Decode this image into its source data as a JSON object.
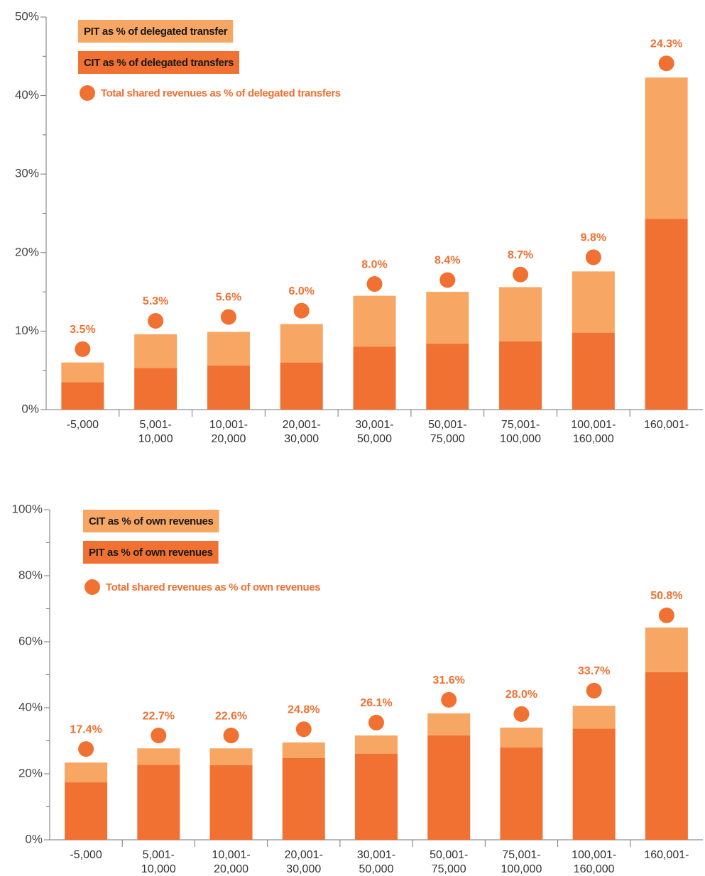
{
  "chart_data": [
    {
      "type": "bar",
      "categories": [
        "-5,000",
        "5,001-\n10,000",
        "10,001-\n20,000",
        "20,001-\n30,000",
        "30,001-\n50,000",
        "50,001-\n75,000",
        "75,001-\n100,000",
        "100,001-\n160,000",
        "160,001-"
      ],
      "series": [
        {
          "name": "PIT as % of delegated transfer",
          "color": "#f7a664",
          "values": [
            2.5,
            4.3,
            4.3,
            4.9,
            6.5,
            6.6,
            6.9,
            7.8,
            18.0
          ]
        },
        {
          "name": "CIT as % of delegated transfers",
          "color": "#f07131",
          "values": [
            3.5,
            5.3,
            5.6,
            6.0,
            8.0,
            8.4,
            8.7,
            9.8,
            24.3
          ],
          "value_labels": [
            "3.5%",
            "5.3%",
            "5.6%",
            "6.0%",
            "8.0%",
            "8.4%",
            "8.7%",
            "9.8%",
            "24.3%"
          ]
        },
        {
          "name": "Total shared revenues as % of delegated transfers",
          "type": "scatter",
          "color": "#f07131",
          "values": [
            7.7,
            11.3,
            11.8,
            12.6,
            16.0,
            16.5,
            17.2,
            19.4,
            44.1
          ]
        }
      ],
      "ylim": [
        0,
        50
      ],
      "yticks": [
        {
          "value": 0,
          "label": "0%"
        },
        {
          "value": 10,
          "label": "10%"
        },
        {
          "value": 20,
          "label": "20%"
        },
        {
          "value": 30,
          "label": "30%"
        },
        {
          "value": 40,
          "label": "40%"
        },
        {
          "value": 50,
          "label": "50%"
        }
      ]
    },
    {
      "type": "bar",
      "categories": [
        "-5,000",
        "5,001-\n10,000",
        "10,001-\n20,000",
        "20,001-\n30,000",
        "30,001-\n50,000",
        "50,001-\n75,000",
        "75,001-\n100,000",
        "100,001-\n160,000",
        "160,001-"
      ],
      "series": [
        {
          "name": "CIT as  % of own revenues",
          "color": "#f7a664",
          "values": [
            6.0,
            5.0,
            5.1,
            4.7,
            5.5,
            6.7,
            6.0,
            6.9,
            13.5
          ]
        },
        {
          "name": "PIT as % of own revenues",
          "color": "#f07131",
          "values": [
            17.4,
            22.7,
            22.6,
            24.8,
            26.1,
            31.6,
            28.0,
            33.7,
            50.8
          ],
          "value_labels": [
            "17.4%",
            "22.7%",
            "22.6%",
            "24.8%",
            "26.1%",
            "31.6%",
            "28.0%",
            "33.7%",
            "50.8%"
          ]
        },
        {
          "name": "Total shared revenues as % of own revenues",
          "type": "scatter",
          "color": "#f07131",
          "values": [
            27.5,
            31.6,
            31.6,
            33.5,
            35.5,
            42.4,
            38.1,
            45.2,
            68.0
          ]
        }
      ],
      "ylim": [
        0,
        100
      ],
      "yticks": [
        {
          "value": 0,
          "label": "0%"
        },
        {
          "value": 20,
          "label": "20%"
        },
        {
          "value": 40,
          "label": "40%"
        },
        {
          "value": 60,
          "label": "60%"
        },
        {
          "value": 80,
          "label": "80%"
        },
        {
          "value": 100,
          "label": "100%"
        }
      ]
    }
  ]
}
